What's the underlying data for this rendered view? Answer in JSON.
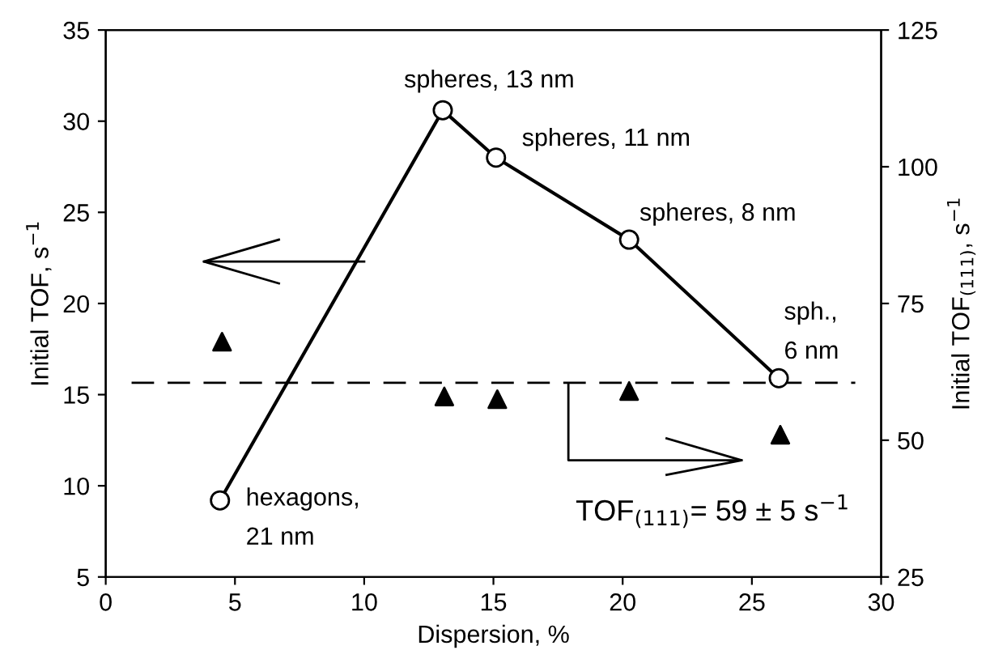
{
  "chart_data": {
    "type": "line",
    "xlabel": "Dispersion, %",
    "ylabel": "Initial TOF, s$^{−1}$",
    "y2label": "Initial TOF$_{(111)}$, s$^{−1}$",
    "xlim": [
      0,
      30
    ],
    "xticks": [
      0,
      5,
      10,
      15,
      20,
      25,
      30
    ],
    "ylim": [
      5,
      35
    ],
    "yticks": [
      5,
      10,
      15,
      20,
      25,
      30,
      35
    ],
    "y2lim": [
      25,
      125
    ],
    "y2ticks": [
      25,
      50,
      75,
      100,
      125
    ],
    "grid": false,
    "legend": false,
    "series": [
      {
        "color": "#000000",
        "marker": "circle",
        "x": [
          4.42,
          13.04,
          15.1,
          20.25,
          26.04
        ],
        "values": [
          9.2,
          30.6,
          28.0,
          23.5,
          15.9
        ]
      },
      {
        "type": "scatter",
        "axis": "y2",
        "color": "#000000",
        "marker": "triangle",
        "x": [
          4.5,
          13.1,
          15.15,
          20.25,
          26.1
        ],
        "values": [
          68,
          58,
          57.5,
          59,
          51
        ]
      }
    ],
    "ref_lines": [
      {
        "axis": "y2",
        "value": 60.5,
        "line_style": "dashed",
        "color": "#000000"
      }
    ],
    "annotations": [
      {
        "text": "spheres, 13 nm",
        "x": 13.04,
        "y": 30.6
      },
      {
        "text": "spheres, 11 nm",
        "x": 15.1,
        "y": 28.0
      },
      {
        "text": "spheres, 8 nm",
        "x": 20.25,
        "y": 23.5
      },
      {
        "text": "sph.,\n6 nm",
        "x": 26.04,
        "y": 15.9
      },
      {
        "text": "hexagons,\n21 nm",
        "x": 4.42,
        "y": 9.2
      },
      "TOF$_{(111)}$= 59 ± 5 s$^{−1}$"
    ]
  }
}
